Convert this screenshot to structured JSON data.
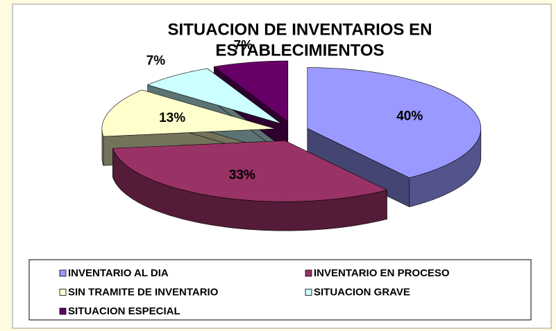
{
  "chart_data": {
    "type": "pie3d",
    "title": [
      "SITUACION DE INVENTARIOS EN",
      "ESTABLECIMIENTOS"
    ],
    "categories": [
      "INVENTARIO AL DIA",
      "INVENTARIO EN PROCESO",
      "SIN TRAMITE DE INVENTARIO",
      "SITUACION GRAVE",
      "SITUACION ESPECIAL"
    ],
    "values": [
      40,
      33,
      13,
      7,
      7
    ],
    "value_labels": [
      "40%",
      "33%",
      "13%",
      "7%",
      "7%"
    ],
    "colors": [
      "#9999ff",
      "#993366",
      "#ffffcc",
      "#ccffff",
      "#660066"
    ],
    "legend": "bottom"
  }
}
